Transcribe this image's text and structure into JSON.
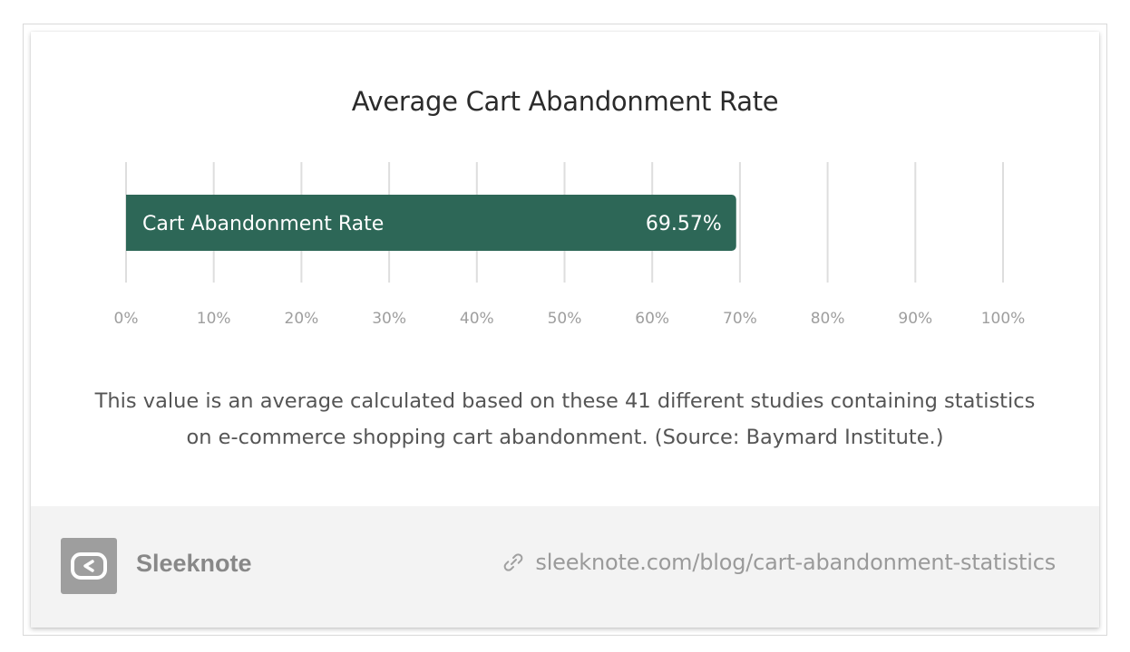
{
  "chart_data": {
    "type": "bar",
    "orientation": "horizontal",
    "title": "Average Cart Abandonment Rate",
    "categories": [
      "Cart Abandonment Rate"
    ],
    "values": [
      69.57
    ],
    "value_labels": [
      "69.57%"
    ],
    "xlim": [
      0,
      100
    ],
    "x_ticks": [
      "0%",
      "10%",
      "20%",
      "30%",
      "40%",
      "50%",
      "60%",
      "70%",
      "80%",
      "90%",
      "100%"
    ],
    "grid": "vertical",
    "bar_color": "#2d6757"
  },
  "caption": "This value is an average calculated based on these 41 different studies containing statistics on e-commerce shopping cart abandonment. (Source: Baymard Institute.)",
  "footer": {
    "brand": "Sleeknote",
    "link": "sleeknote.com/blog/cart-abandonment-statistics",
    "logo_icon": "sleeknote-logo-icon",
    "link_icon": "link-chain-icon"
  }
}
